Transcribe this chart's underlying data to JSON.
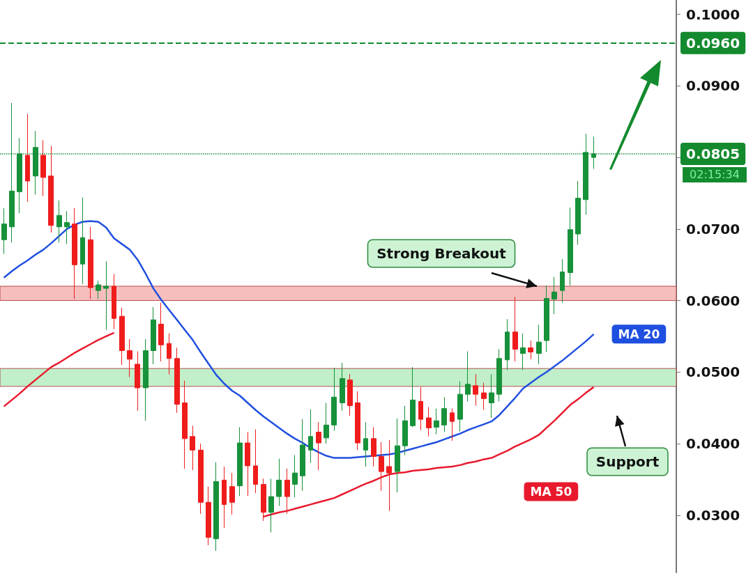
{
  "chart_data": {
    "type": "candlestick",
    "categories": [
      null,
      null,
      null,
      null,
      null,
      null,
      null,
      null,
      null,
      null,
      null,
      null,
      null,
      null,
      null,
      null,
      null,
      null,
      null,
      null,
      null,
      null,
      null,
      null,
      null,
      null,
      null,
      null,
      null,
      null,
      null,
      null,
      null,
      null,
      null,
      null,
      null,
      null,
      null,
      null,
      null,
      null,
      null,
      null,
      null,
      null,
      null,
      null,
      null,
      null,
      null,
      null,
      null,
      null,
      null,
      null,
      null,
      null,
      null,
      null,
      null,
      null,
      null,
      null,
      null,
      null,
      null,
      null,
      null,
      null,
      null,
      null,
      null,
      null,
      null,
      null
    ],
    "ohlc": [
      [
        0.0685,
        0.0729,
        0.0665,
        0.0707
      ],
      [
        0.0703,
        0.0876,
        0.0681,
        0.0753
      ],
      [
        0.0752,
        0.0827,
        0.0722,
        0.0805
      ],
      [
        0.0803,
        0.0861,
        0.0738,
        0.0767
      ],
      [
        0.0774,
        0.0837,
        0.0748,
        0.0814
      ],
      [
        0.0803,
        0.0824,
        0.0746,
        0.0772
      ],
      [
        0.0774,
        0.0816,
        0.0695,
        0.0705
      ],
      [
        0.0703,
        0.074,
        0.0681,
        0.0719
      ],
      [
        0.0703,
        0.0725,
        0.0679,
        0.0709
      ],
      [
        0.0707,
        0.0729,
        0.0602,
        0.065
      ],
      [
        0.0651,
        0.0744,
        0.0623,
        0.0688
      ],
      [
        0.0685,
        0.0703,
        0.0602,
        0.0618
      ],
      [
        0.0614,
        0.0628,
        0.0602,
        0.0622
      ],
      [
        0.0617,
        0.0655,
        0.0559,
        0.062
      ],
      [
        0.062,
        0.0637,
        0.056,
        0.0575
      ],
      [
        0.0578,
        0.059,
        0.051,
        0.053
      ],
      [
        0.053,
        0.0546,
        0.0493,
        0.0518
      ],
      [
        0.0511,
        0.0529,
        0.0446,
        0.0478
      ],
      [
        0.0478,
        0.0546,
        0.0432,
        0.053
      ],
      [
        0.053,
        0.0591,
        0.0511,
        0.0573
      ],
      [
        0.0567,
        0.0597,
        0.0515,
        0.0538
      ],
      [
        0.054,
        0.0554,
        0.0497,
        0.0519
      ],
      [
        0.0519,
        0.0534,
        0.0443,
        0.0455
      ],
      [
        0.0457,
        0.0488,
        0.0365,
        0.0407
      ],
      [
        0.041,
        0.0425,
        0.0363,
        0.0391
      ],
      [
        0.0391,
        0.04,
        0.0302,
        0.0318
      ],
      [
        0.0318,
        0.034,
        0.0258,
        0.0269
      ],
      [
        0.0267,
        0.0374,
        0.025,
        0.0347
      ],
      [
        0.0349,
        0.0368,
        0.0282,
        0.0315
      ],
      [
        0.034,
        0.0359,
        0.0301,
        0.0318
      ],
      [
        0.0341,
        0.0423,
        0.0327,
        0.0401
      ],
      [
        0.0401,
        0.0416,
        0.0327,
        0.0369
      ],
      [
        0.0369,
        0.042,
        0.0331,
        0.0343
      ],
      [
        0.0343,
        0.0351,
        0.0292,
        0.0304
      ],
      [
        0.0304,
        0.0351,
        0.0276,
        0.0326
      ],
      [
        0.0326,
        0.0379,
        0.0313,
        0.0349
      ],
      [
        0.0349,
        0.0365,
        0.0302,
        0.0326
      ],
      [
        0.0343,
        0.0384,
        0.0325,
        0.0359
      ],
      [
        0.0355,
        0.0434,
        0.0334,
        0.0398
      ],
      [
        0.0391,
        0.0448,
        0.0373,
        0.041
      ],
      [
        0.0416,
        0.043,
        0.0363,
        0.0401
      ],
      [
        0.0408,
        0.0457,
        0.04,
        0.0426
      ],
      [
        0.0426,
        0.0506,
        0.0418,
        0.0465
      ],
      [
        0.0457,
        0.0513,
        0.0446,
        0.0491
      ],
      [
        0.0489,
        0.0497,
        0.0439,
        0.0453
      ],
      [
        0.0457,
        0.0473,
        0.0391,
        0.0401
      ],
      [
        0.0391,
        0.043,
        0.0368,
        0.0407
      ],
      [
        0.0407,
        0.0423,
        0.0368,
        0.0382
      ],
      [
        0.0382,
        0.0402,
        0.0334,
        0.0361
      ],
      [
        0.0368,
        0.0405,
        0.0306,
        0.0359
      ],
      [
        0.0361,
        0.0435,
        0.0332,
        0.0397
      ],
      [
        0.0397,
        0.0453,
        0.0384,
        0.0432
      ],
      [
        0.0425,
        0.0507,
        0.0423,
        0.0461
      ],
      [
        0.0459,
        0.0479,
        0.0419,
        0.0434
      ],
      [
        0.0436,
        0.0451,
        0.041,
        0.0422
      ],
      [
        0.0423,
        0.0449,
        0.0413,
        0.0432
      ],
      [
        0.0426,
        0.0465,
        0.0416,
        0.0449
      ],
      [
        0.0443,
        0.0449,
        0.0404,
        0.0431
      ],
      [
        0.0434,
        0.0487,
        0.0417,
        0.0469
      ],
      [
        0.0469,
        0.0529,
        0.0459,
        0.0483
      ],
      [
        0.0481,
        0.0497,
        0.0453,
        0.0469
      ],
      [
        0.0471,
        0.0485,
        0.0447,
        0.0463
      ],
      [
        0.0457,
        0.0497,
        0.0436,
        0.0471
      ],
      [
        0.0469,
        0.0532,
        0.0459,
        0.0519
      ],
      [
        0.0517,
        0.0574,
        0.0503,
        0.0556
      ],
      [
        0.0556,
        0.0605,
        0.0515,
        0.0532
      ],
      [
        0.0526,
        0.0554,
        0.0503,
        0.0534
      ],
      [
        0.0534,
        0.0544,
        0.0518,
        0.0528
      ],
      [
        0.0526,
        0.0566,
        0.0511,
        0.0542
      ],
      [
        0.0544,
        0.0621,
        0.0528,
        0.0603
      ],
      [
        0.0602,
        0.0633,
        0.0581,
        0.0612
      ],
      [
        0.0614,
        0.0658,
        0.0597,
        0.064
      ],
      [
        0.0639,
        0.073,
        0.0621,
        0.0699
      ],
      [
        0.0693,
        0.0767,
        0.0678,
        0.0743
      ],
      [
        0.0741,
        0.0833,
        0.072,
        0.0807
      ],
      [
        0.08,
        0.0829,
        0.0784,
        0.0805
      ]
    ],
    "series": [
      {
        "type": "line",
        "name": "MA 20",
        "color": "#1f4fe0",
        "values": [
          0.0632,
          0.0641,
          0.0649,
          0.0656,
          0.0664,
          0.0671,
          0.068,
          0.069,
          0.07,
          0.0706,
          0.071,
          0.0711,
          0.071,
          0.0702,
          0.0687,
          0.0679,
          0.0671,
          0.0657,
          0.0638,
          0.0617,
          0.0601,
          0.0587,
          0.0573,
          0.0559,
          0.0545,
          0.0528,
          0.0512,
          0.0496,
          0.0484,
          0.0474,
          0.0467,
          0.0457,
          0.0447,
          0.0438,
          0.043,
          0.0422,
          0.0414,
          0.0407,
          0.0401,
          0.0394,
          0.0388,
          0.0383,
          0.038,
          0.038,
          0.038,
          0.0381,
          0.0382,
          0.0383,
          0.0384,
          0.0385,
          0.0387,
          0.039,
          0.0393,
          0.0396,
          0.0399,
          0.0402,
          0.0406,
          0.041,
          0.0414,
          0.0419,
          0.0423,
          0.0427,
          0.0431,
          0.044,
          0.0452,
          0.0464,
          0.0477,
          0.0485,
          0.0493,
          0.05,
          0.0508,
          0.0516,
          0.0525,
          0.0534,
          0.0543,
          0.0553
        ]
      },
      {
        "type": "line",
        "name": "MA 50",
        "color": "#e8192c",
        "values": [
          0.0452,
          0.0461,
          0.047,
          0.048,
          0.0489,
          0.0498,
          0.0507,
          0.0513,
          0.052,
          0.0527,
          0.0533,
          0.0539,
          0.0545,
          0.055,
          0.0555,
          null,
          null,
          null,
          null,
          null,
          null,
          null,
          null,
          null,
          null,
          null,
          null,
          null,
          null,
          null,
          null,
          null,
          null,
          0.0298,
          0.0301,
          0.0304,
          0.0306,
          0.0309,
          0.0312,
          0.0315,
          0.0318,
          0.0321,
          0.0324,
          0.0329,
          0.0334,
          0.0339,
          0.0344,
          0.0348,
          0.0353,
          0.0357,
          0.0359,
          0.036,
          0.0362,
          0.0363,
          0.0364,
          0.0366,
          0.0367,
          0.0368,
          0.037,
          0.0373,
          0.0375,
          0.0378,
          0.038,
          0.0385,
          0.039,
          0.0396,
          0.0401,
          0.0406,
          0.0412,
          0.0422,
          0.0432,
          0.0443,
          0.0454,
          0.0462,
          0.0471,
          0.0479
        ]
      }
    ],
    "ylim": [
      0.022,
      0.102
    ],
    "yticks": [
      {
        "value": 0.03,
        "label": "0.0300"
      },
      {
        "value": 0.04,
        "label": "0.0400"
      },
      {
        "value": 0.05,
        "label": "0.0500"
      },
      {
        "value": 0.06,
        "label": "0.0600"
      },
      {
        "value": 0.07,
        "label": "0.0700"
      },
      {
        "value": 0.08,
        "label": null
      },
      {
        "value": 0.09,
        "label": "0.0900"
      },
      {
        "value": 0.1,
        "label": "0.1000"
      }
    ],
    "ref_lines": [
      {
        "axis": "y",
        "value": 0.096,
        "label": "0.0960",
        "color": "#138a2e",
        "line_style": "dashed"
      },
      {
        "axis": "y",
        "value": 0.0805,
        "label": "0.0805",
        "color": "#138a2e",
        "line_style": "dotted"
      }
    ],
    "bands": [
      {
        "axis": "y",
        "from": 0.06,
        "to": 0.062,
        "color": "#f6b3b3"
      },
      {
        "axis": "y",
        "from": 0.048,
        "to": 0.0505,
        "color": "#b5ecc0"
      }
    ],
    "annotations": [
      {
        "text": "Strong Breakout",
        "y": 0.062
      },
      "Support",
      "02:15:34"
    ],
    "marker": "none",
    "grid": false,
    "legend": false
  }
}
